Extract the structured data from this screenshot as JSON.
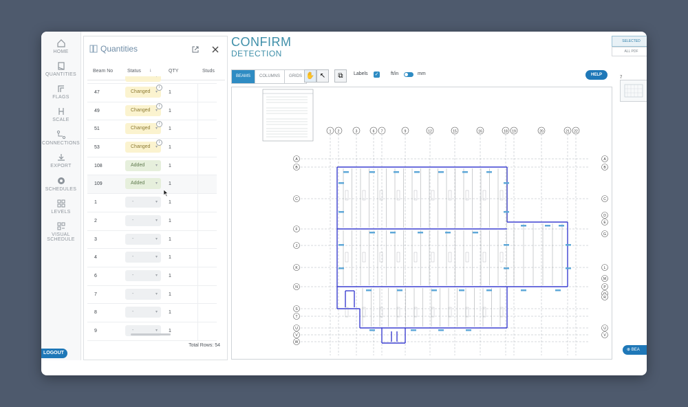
{
  "sidebar": {
    "items": [
      {
        "label": "HOME",
        "icon": "home-icon"
      },
      {
        "label": "QUANTITIES",
        "icon": "quantities-icon"
      },
      {
        "label": "FLAGS",
        "icon": "flags-icon"
      },
      {
        "label": "SCALE",
        "icon": "scale-icon"
      },
      {
        "label": "CONNECTIONS",
        "icon": "connections-icon"
      },
      {
        "label": "EXPORT",
        "icon": "export-icon"
      },
      {
        "label": "SCHEDULES",
        "icon": "gear-icon"
      },
      {
        "label": "LEVELS",
        "icon": "levels-icon"
      },
      {
        "label": "VISUAL",
        "label2": "SCHEDULE",
        "icon": "visual-schedule-icon"
      }
    ],
    "logout_label": "LOGOUT"
  },
  "quantities": {
    "title": "Quantities",
    "columns": {
      "beam_no": "Beam No",
      "status": "Status",
      "qty": "QTY",
      "studs": "Studs"
    },
    "rows": [
      {
        "beam": "47",
        "status": "Changed",
        "qty": "1"
      },
      {
        "beam": "49",
        "status": "Changed",
        "qty": "1"
      },
      {
        "beam": "51",
        "status": "Changed",
        "qty": "1"
      },
      {
        "beam": "53",
        "status": "Changed",
        "qty": "1"
      },
      {
        "beam": "108",
        "status": "Added",
        "qty": "1"
      },
      {
        "beam": "109",
        "status": "Added",
        "qty": "1"
      },
      {
        "beam": "1",
        "status": "-",
        "qty": "1"
      },
      {
        "beam": "2",
        "status": "-",
        "qty": "1"
      },
      {
        "beam": "3",
        "status": "-",
        "qty": "1"
      },
      {
        "beam": "4",
        "status": "-",
        "qty": "1"
      },
      {
        "beam": "6",
        "status": "-",
        "qty": "1"
      },
      {
        "beam": "7",
        "status": "-",
        "qty": "1"
      },
      {
        "beam": "8",
        "status": "-",
        "qty": "1"
      },
      {
        "beam": "9",
        "status": "-",
        "qty": "1"
      }
    ],
    "total_rows": "Total Rows: 54"
  },
  "main": {
    "title_line1": "CONFIRM",
    "title_line2": "DETECTION",
    "tabs": [
      "BEAMS",
      "COLUMNS",
      "GRIDS"
    ],
    "labels_label": "Labels",
    "unit_left": "ft/in",
    "unit_right": "mm",
    "help_label": "HELP",
    "selected_label": "SELECTED",
    "all_pdf_label": "ALL PDF",
    "page_number": "7",
    "beam_button": "BEA"
  },
  "drawing": {
    "top_grid": [
      "1",
      "2",
      "3",
      "6",
      "7",
      "9",
      "12",
      "15",
      "16",
      "18",
      "19",
      "20",
      "21",
      "22"
    ],
    "left_grid": [
      "A",
      "B",
      "C",
      "F",
      "J",
      "K",
      "N",
      "S",
      "T",
      "U",
      "V",
      "W"
    ],
    "right_grid": [
      "A",
      "B",
      "C",
      "D",
      "E",
      "G",
      "L",
      "M",
      "P",
      "Q",
      "R",
      "U",
      "V"
    ],
    "colors": {
      "beam": "#3a3ed0",
      "highlight": "#5fa8d8"
    }
  }
}
